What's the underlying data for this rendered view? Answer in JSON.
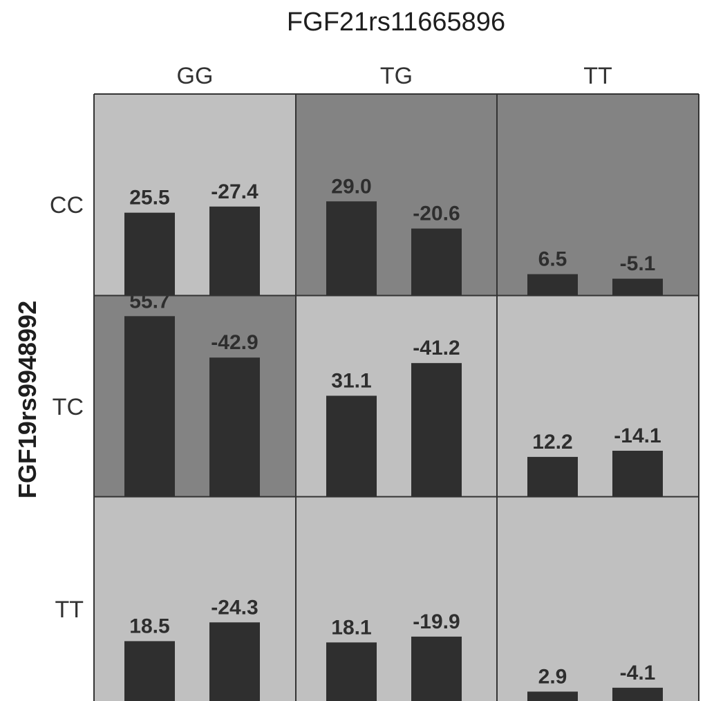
{
  "chart_data": {
    "type": "bar",
    "title": "FGF21rs11665896",
    "ylabel": "FGF19rs9948992",
    "columns": [
      "GG",
      "TG",
      "TT"
    ],
    "rows": [
      "CC",
      "TC",
      "TT"
    ],
    "cells": [
      [
        {
          "values": [
            25.5,
            -27.4
          ],
          "labels": [
            "25.5",
            "-27.4"
          ],
          "shade": "light"
        },
        {
          "values": [
            29.0,
            -20.6
          ],
          "labels": [
            "29.0",
            "-20.6"
          ],
          "shade": "dark"
        },
        {
          "values": [
            6.5,
            -5.1
          ],
          "labels": [
            "6.5",
            "-5.1"
          ],
          "shade": "dark"
        }
      ],
      [
        {
          "values": [
            55.7,
            -42.9
          ],
          "labels": [
            "55.7",
            "-42.9"
          ],
          "shade": "dark"
        },
        {
          "values": [
            31.1,
            -41.2
          ],
          "labels": [
            "31.1",
            "-41.2"
          ],
          "shade": "light"
        },
        {
          "values": [
            12.2,
            -14.1
          ],
          "labels": [
            "12.2",
            "-14.1"
          ],
          "shade": "light"
        }
      ],
      [
        {
          "values": [
            18.5,
            -24.3
          ],
          "labels": [
            "18.5",
            "-24.3"
          ],
          "shade": "light"
        },
        {
          "values": [
            18.1,
            -19.9
          ],
          "labels": [
            "18.1",
            "-19.9"
          ],
          "shade": "light"
        },
        {
          "values": [
            2.9,
            -4.1
          ],
          "labels": [
            "2.9",
            "-4.1"
          ],
          "shade": "light"
        }
      ]
    ],
    "bar_magnitude": "absolute value",
    "colors": {
      "light_cell": "#c0c0c0",
      "dark_cell": "#838383",
      "bar": "#2f2f2f",
      "grid": "#333333"
    }
  }
}
